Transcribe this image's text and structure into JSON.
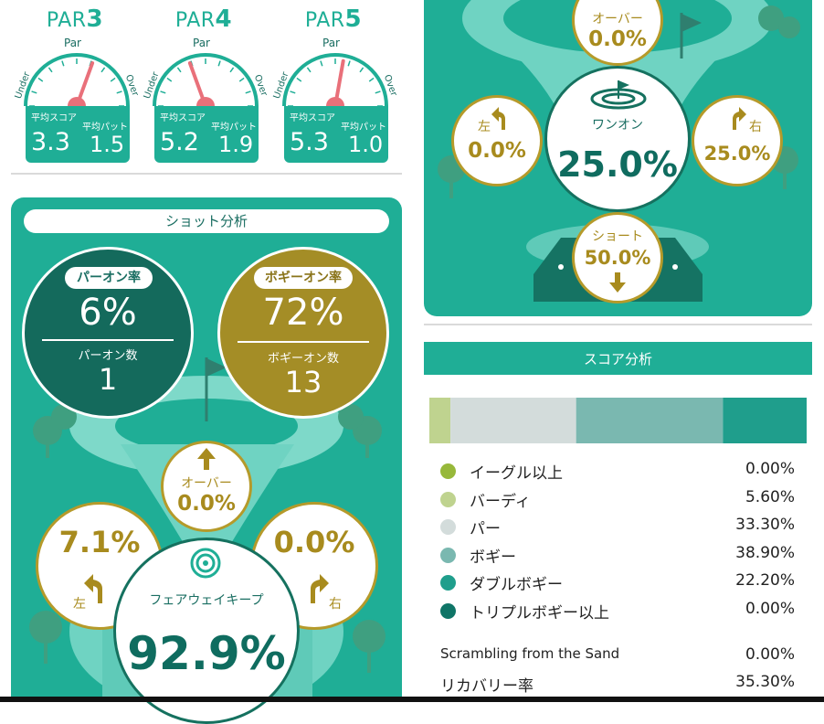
{
  "pars": [
    {
      "label_prefix": "PAR",
      "label_num": "3",
      "gauge_top": "Par",
      "gauge_left": "Under",
      "gauge_right": "Over",
      "avg_score_label": "平均スコア",
      "avg_putt_label": "平均パット",
      "avg_score": "3.3",
      "avg_putt": "1.5"
    },
    {
      "label_prefix": "PAR",
      "label_num": "4",
      "gauge_top": "Par",
      "gauge_left": "Under",
      "gauge_right": "Over",
      "avg_score_label": "平均スコア",
      "avg_putt_label": "平均パット",
      "avg_score": "5.2",
      "avg_putt": "1.9"
    },
    {
      "label_prefix": "PAR",
      "label_num": "5",
      "gauge_top": "Par",
      "gauge_left": "Under",
      "gauge_right": "Over",
      "avg_score_label": "平均スコア",
      "avg_putt_label": "平均パット",
      "avg_score": "5.3",
      "avg_putt": "1.0"
    }
  ],
  "shot": {
    "title": "ショット分析",
    "par_on": {
      "label": "パーオン率",
      "rate": "6%",
      "count_label": "パーオン数",
      "count": "1"
    },
    "bogey_on": {
      "label": "ボギーオン率",
      "rate": "72%",
      "count_label": "ボギーオン数",
      "count": "13"
    },
    "fairway": {
      "over_label": "オーバー",
      "over": "0.0%",
      "left_label": "左",
      "left": "7.1%",
      "right_label": "右",
      "right": "0.0%",
      "keep_label": "フェアウェイキープ",
      "keep": "92.9%"
    }
  },
  "green": {
    "over_label": "オーバー",
    "over": "0.0%",
    "left_label": "左",
    "left": "0.0%",
    "right_label": "右",
    "right": "25.0%",
    "one_on_label": "ワンオン",
    "one_on": "25.0%",
    "short_label": "ショート",
    "short": "50.0%"
  },
  "score": {
    "title": "スコア分析",
    "legend": [
      {
        "label": "イーグル以上",
        "value": "0.00%",
        "color": "#97b83a"
      },
      {
        "label": "バーディ",
        "value": "5.60%",
        "color": "#bfd38f"
      },
      {
        "label": "パー",
        "value": "33.30%",
        "color": "#d3dcdb"
      },
      {
        "label": "ボギー",
        "value": "38.90%",
        "color": "#7ab8b0"
      },
      {
        "label": "ダブルボギー",
        "value": "22.20%",
        "color": "#1f9e8c"
      },
      {
        "label": "トリプルボギー以上",
        "value": "0.00%",
        "color": "#0f7567"
      }
    ],
    "sand_label": "Scrambling from the Sand",
    "sand": "0.00%",
    "recovery_label": "リカバリー率",
    "recovery": "35.30%"
  },
  "chart_data": {
    "type": "bar",
    "categories": [
      "イーグル以上",
      "バーディ",
      "パー",
      "ボギー",
      "ダブルボギー",
      "トリプルボギー以上"
    ],
    "values": [
      0.0,
      5.6,
      33.3,
      38.9,
      22.2,
      0.0
    ],
    "title": "スコア分析",
    "xlabel": "",
    "ylabel": ""
  }
}
